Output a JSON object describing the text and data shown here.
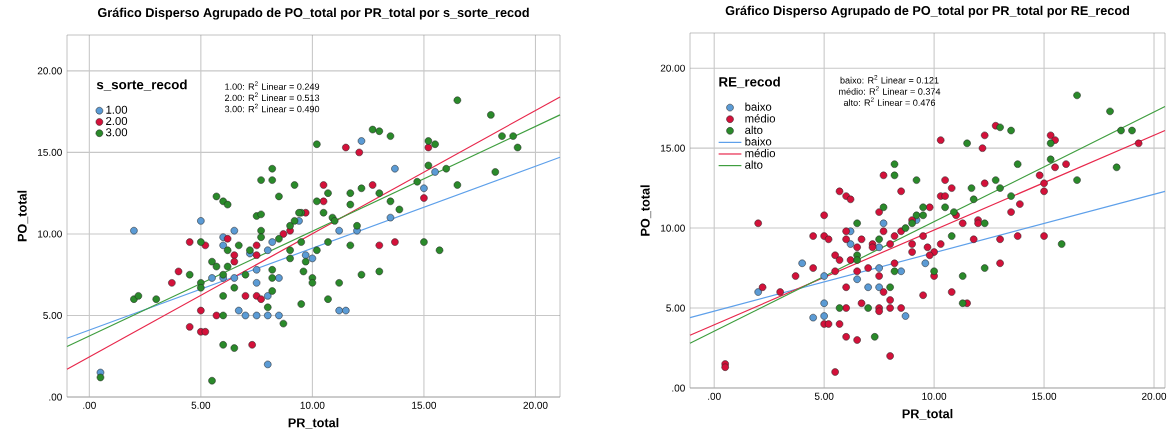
{
  "chart_data": [
    {
      "type": "scatter",
      "title": "Gráfico Disperso Agrupado de PO_total por PR_total por s_sorte_recod",
      "xlabel": "PR_total",
      "ylabel": "PO_total",
      "legend_title": "s_sorte_recod",
      "legend": "top left",
      "grid": true,
      "xlim": [
        -1.0,
        21.1
      ],
      "ylim": [
        0,
        22.2
      ],
      "xticks": [
        {
          "value": 0,
          "label": ".00"
        },
        {
          "value": 5,
          "label": "5.00"
        },
        {
          "value": 10,
          "label": "10.00"
        },
        {
          "value": 15,
          "label": "15.00"
        },
        {
          "value": 20,
          "label": "20.00"
        }
      ],
      "yticks": [
        {
          "value": 0,
          "label": ".00"
        },
        {
          "value": 5,
          "label": "5.00"
        },
        {
          "value": 10,
          "label": "10.00"
        },
        {
          "value": 15,
          "label": "15.00"
        },
        {
          "value": 20,
          "label": "20.00"
        }
      ],
      "annotations": [
        "1.00: R$^{2}$ Linear = 0.249",
        "2.00: R$^{2}$ Linear = 0.513",
        "3.00: R$^{2}$ Linear = 0.490"
      ],
      "series": [
        {
          "name": "1.00",
          "marker": "circle",
          "color": "#5b9bd5",
          "x": [
            0.5,
            5.0,
            2.0,
            6.0,
            6.5,
            6.0,
            8.2,
            8.0,
            7.2,
            5.5,
            6.0,
            6.5,
            7.5,
            7.5,
            8.5,
            6.7,
            7.0,
            7.5,
            8.0,
            8.5,
            8.0,
            9.4,
            8.0,
            12.2,
            13.7,
            15.5,
            15.0,
            13.5,
            11.2,
            12.0,
            9.7,
            10.0,
            11.2,
            11.5
          ],
          "values": [
            1.5,
            10.8,
            10.2,
            9.8,
            10.2,
            9.3,
            9.5,
            9.0,
            8.8,
            7.3,
            7.3,
            7.3,
            7.8,
            7.0,
            7.3,
            5.3,
            5.0,
            5.0,
            5.0,
            5.0,
            2.0,
            10.8,
            6.2,
            15.7,
            14.0,
            13.8,
            12.8,
            11.0,
            10.2,
            10.2,
            8.7,
            8.5,
            5.3,
            5.3
          ]
        },
        {
          "name": "2.00",
          "marker": "circle",
          "color": "#d4113a",
          "x": [
            4.5,
            4.0,
            3.7,
            5.2,
            5.0,
            4.5,
            5.0,
            5.2,
            5.7,
            6.2,
            6.5,
            6.5,
            7.5,
            7.5,
            7.0,
            7.5,
            7.7,
            7.3,
            8.7,
            9.0,
            9.7,
            11.5,
            12.1,
            15.2,
            10.5,
            10.5,
            12.7,
            15.0,
            13.0,
            13.7
          ],
          "values": [
            9.5,
            7.7,
            7.0,
            9.3,
            5.3,
            4.3,
            4.0,
            4.0,
            5.0,
            9.7,
            8.7,
            8.3,
            9.3,
            8.7,
            6.2,
            6.2,
            6.0,
            3.2,
            10.0,
            10.2,
            11.3,
            15.3,
            15.0,
            15.3,
            13.0,
            12.0,
            13.0,
            12.2,
            9.3,
            9.5
          ]
        },
        {
          "name": "3.00",
          "marker": "circle",
          "color": "#2a8a2a",
          "x": [
            0.5,
            5.5,
            2.0,
            2.2,
            3.0,
            4.5,
            5.0,
            5.0,
            5.0,
            5.5,
            5.7,
            5.7,
            6.0,
            6.2,
            6.0,
            6.2,
            6.2,
            6.7,
            6.5,
            7.0,
            6.0,
            6.0,
            6.0,
            6.5,
            7.2,
            7.5,
            7.7,
            7.7,
            7.7,
            7.7,
            8.2,
            8.2,
            8.5,
            9.2,
            8.2,
            8.2,
            8.2,
            8.0,
            8.7,
            8.5,
            9.0,
            9.0,
            9.0,
            9.2,
            9.5,
            9.5,
            9.5,
            9.7,
            10.2,
            16.5,
            18.0,
            12.7,
            13.0,
            13.5,
            15.2,
            15.5,
            18.5,
            19.0,
            19.2,
            18.2,
            16.0,
            15.2,
            14.7,
            16.5,
            10.7,
            10.2,
            11.7,
            11.7,
            12.2,
            13.0,
            13.5,
            13.9,
            10.5,
            9.4,
            10.9,
            11.0,
            12.0,
            10.7,
            11.7,
            10.2,
            15.0,
            15.7,
            9.6,
            10.0,
            10.0,
            11.2,
            12.2,
            13.0,
            10.7
          ],
          "values": [
            1.2,
            1.0,
            6.0,
            6.2,
            6.0,
            7.5,
            7.0,
            6.7,
            9.5,
            8.3,
            8.0,
            12.3,
            12.0,
            11.8,
            7.5,
            8.0,
            9.0,
            9.3,
            6.7,
            7.5,
            6.2,
            5.0,
            3.2,
            3.0,
            9.0,
            11.1,
            11.2,
            10.2,
            9.8,
            13.3,
            13.3,
            14.0,
            12.3,
            13.0,
            7.8,
            7.3,
            6.5,
            5.5,
            4.5,
            9.7,
            10.5,
            9.0,
            8.5,
            10.8,
            11.3,
            9.5,
            5.7,
            8.3,
            15.5,
            18.2,
            17.3,
            16.4,
            16.3,
            16.0,
            15.7,
            15.5,
            16.0,
            16.0,
            15.3,
            13.8,
            14.0,
            14.2,
            13.2,
            13.0,
            12.5,
            12.0,
            12.5,
            11.8,
            12.8,
            12.5,
            12.0,
            11.5,
            11.3,
            11.3,
            11.0,
            10.8,
            10.5,
            9.5,
            9.3,
            9.0,
            9.5,
            9.0,
            7.7,
            7.3,
            7.0,
            7.0,
            7.5,
            7.7,
            6.0
          ]
        },
        {
          "type": "line",
          "marker": "none",
          "color": "#5ea0ea",
          "x": [
            -1.0,
            21.1
          ],
          "values": [
            3.6,
            14.7
          ]
        },
        {
          "type": "line",
          "marker": "none",
          "color": "#e8284c",
          "x": [
            -1.0,
            21.1
          ],
          "values": [
            1.7,
            18.4
          ]
        },
        {
          "type": "line",
          "marker": "none",
          "color": "#3f9e3f",
          "x": [
            -1.0,
            21.1
          ],
          "values": [
            3.1,
            17.3
          ]
        }
      ]
    },
    {
      "type": "scatter",
      "title": "Gráfico Disperso Agrupado de PO_total por PR_total por RE_recod",
      "xlabel": "PR_total",
      "ylabel": "PO_total",
      "legend_title": "RE_recod",
      "legend": "top left",
      "grid": true,
      "xlim": [
        -1.1,
        20.5
      ],
      "ylim": [
        0,
        22.2
      ],
      "xticks": [
        {
          "value": 0,
          "label": ".00"
        },
        {
          "value": 5,
          "label": "5.00"
        },
        {
          "value": 10,
          "label": "10.00"
        },
        {
          "value": 15,
          "label": "15.00"
        },
        {
          "value": 20,
          "label": "20.00"
        }
      ],
      "yticks": [
        {
          "value": 0,
          "label": ".00"
        },
        {
          "value": 5,
          "label": "5.00"
        },
        {
          "value": 10,
          "label": "10.00"
        },
        {
          "value": 15,
          "label": "15.00"
        },
        {
          "value": 20,
          "label": "20.00"
        }
      ],
      "annotations": [
        "baixo: R$^{2}$ Linear = 0.121",
        "médio: R$^{2}$ Linear = 0.374",
        "alto: R$^{2}$ Linear = 0.476"
      ],
      "series": [
        {
          "name": "baixo",
          "marker": "circle",
          "color": "#5b9bd5",
          "x": [
            2.0,
            4.0,
            5.0,
            5.0,
            5.0,
            4.5,
            6.2,
            6.2,
            6.5,
            7.0,
            7.5,
            7.5,
            7.5,
            7.7,
            8.5,
            8.7,
            9.2,
            9.6
          ],
          "values": [
            6.0,
            7.8,
            7.0,
            5.3,
            4.5,
            4.4,
            9.8,
            9.0,
            6.8,
            6.3,
            7.5,
            6.3,
            8.8,
            10.3,
            7.3,
            4.5,
            10.5,
            7.8
          ]
        },
        {
          "name": "médio",
          "marker": "circle",
          "color": "#d4113a",
          "x": [
            0.5,
            0.5,
            2.0,
            2.2,
            3.0,
            3.7,
            4.5,
            4.5,
            5.0,
            5.0,
            5.2,
            5.0,
            5.2,
            5.5,
            5.7,
            5.5,
            5.7,
            5.7,
            6.0,
            6.2,
            6.0,
            6.0,
            6.0,
            6.0,
            6.0,
            6.5,
            6.2,
            6.5,
            6.5,
            6.7,
            6.7,
            7.0,
            7.2,
            7.2,
            7.5,
            7.5,
            7.5,
            7.5,
            7.7,
            7.7,
            7.7,
            8.0,
            8.0,
            8.0,
            8.0,
            8.2,
            8.2,
            8.5,
            8.5,
            8.5,
            9.0,
            9.0,
            9.0,
            9.5,
            9.5,
            9.7,
            10.0,
            10.0,
            5.5,
            10.3,
            12.3,
            12.2,
            12.8,
            15.3,
            15.5,
            19.3,
            16.0,
            15.5,
            14.8,
            15.0,
            15.0,
            10.5,
            10.8,
            10.3,
            10.5,
            9.8,
            11.0,
            12.3,
            13.9,
            13.5,
            11.3,
            12.0,
            12.0,
            10.3,
            11.8,
            13.0,
            13.8,
            15.0,
            9.8,
            13.0,
            10.8,
            11.5
          ],
          "values": [
            1.5,
            1.3,
            10.3,
            6.3,
            6.0,
            7.0,
            9.5,
            7.5,
            10.8,
            9.5,
            9.3,
            4.0,
            4.0,
            8.3,
            8.0,
            7.3,
            4.0,
            12.3,
            12.0,
            11.8,
            9.8,
            9.3,
            6.3,
            5.0,
            3.2,
            8.8,
            8.0,
            7.3,
            3.0,
            5.3,
            9.3,
            7.5,
            9.0,
            8.8,
            11.0,
            7.0,
            5.0,
            4.8,
            9.8,
            13.3,
            6.0,
            9.0,
            5.5,
            5.0,
            2.0,
            9.5,
            7.8,
            12.3,
            9.8,
            5.0,
            10.5,
            9.0,
            8.5,
            9.5,
            5.8,
            8.8,
            8.5,
            7.0,
            1.0,
            15.5,
            15.8,
            15.0,
            16.4,
            15.8,
            15.5,
            15.3,
            14.0,
            13.8,
            13.3,
            12.8,
            12.3,
            13.0,
            12.5,
            12.0,
            12.0,
            11.3,
            10.8,
            12.8,
            11.5,
            11.0,
            10.3,
            10.5,
            10.3,
            9.0,
            9.3,
            9.3,
            9.5,
            9.5,
            8.3,
            7.8,
            6.0,
            5.3
          ]
        },
        {
          "name": "alto",
          "marker": "circle",
          "color": "#2a8a2a",
          "x": [
            5.7,
            7.0,
            7.3,
            6.5,
            6.5,
            6.5,
            7.5,
            7.7,
            8.2,
            8.2,
            9.2,
            8.7,
            9.0,
            9.5,
            9.2,
            9.5,
            8.0,
            8.2,
            10.0,
            16.5,
            18.0,
            13.0,
            13.5,
            11.5,
            15.3,
            18.5,
            19.0,
            13.8,
            15.3,
            18.3,
            16.5,
            12.8,
            11.7,
            13.0,
            11.8,
            13.5,
            10.5,
            10.9,
            12.3,
            10.8,
            15.8,
            12.3,
            11.3,
            11.3
          ],
          "values": [
            5.0,
            5.0,
            3.2,
            10.3,
            8.3,
            8.0,
            9.3,
            11.3,
            14.0,
            13.3,
            13.0,
            10.0,
            10.3,
            11.3,
            10.8,
            10.8,
            6.3,
            7.3,
            7.3,
            18.3,
            17.3,
            16.3,
            16.1,
            15.3,
            15.3,
            16.1,
            16.1,
            14.0,
            14.3,
            13.8,
            13.0,
            13.0,
            12.5,
            12.5,
            11.8,
            12.0,
            11.3,
            11.0,
            10.3,
            9.5,
            9.0,
            7.5,
            7.0,
            5.3
          ]
        },
        {
          "name": "baixo",
          "type": "line",
          "marker": "none",
          "color": "#5ea0ea",
          "x": [
            -1.1,
            20.5
          ],
          "values": [
            4.4,
            12.3
          ]
        },
        {
          "name": "médio",
          "type": "line",
          "marker": "none",
          "color": "#e8284c",
          "x": [
            -1.1,
            20.5
          ],
          "values": [
            3.3,
            16.1
          ]
        },
        {
          "name": "alto",
          "type": "line",
          "marker": "none",
          "color": "#3f9e3f",
          "x": [
            -1.1,
            20.5
          ],
          "values": [
            2.8,
            17.6
          ]
        }
      ]
    }
  ]
}
